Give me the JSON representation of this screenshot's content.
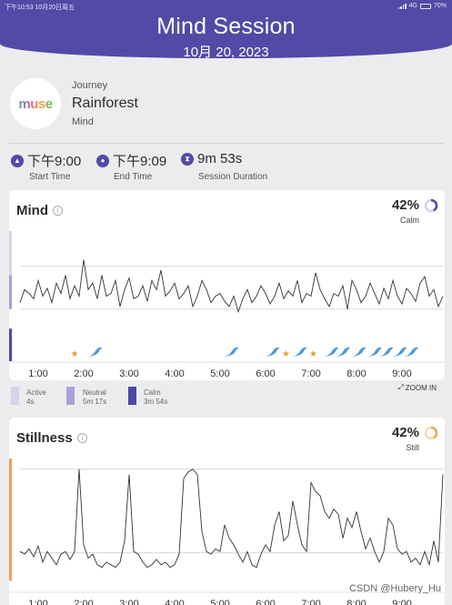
{
  "status_bar": {
    "time_date": "下午10:53  10月20日周五",
    "network": "4G",
    "battery": "70%"
  },
  "header": {
    "title": "Mind Session",
    "date": "10月 20, 2023"
  },
  "journey": {
    "logo_text": "muse",
    "label": "Journey",
    "name": "Rainforest",
    "type": "Mind"
  },
  "session": {
    "start": {
      "value": "下午9:00",
      "label": "Start Time"
    },
    "end": {
      "value": "下午9:09",
      "label": "End Time"
    },
    "duration": {
      "value": "9m 53s",
      "label": "Session Duration"
    }
  },
  "colors": {
    "brand": "#524aa6",
    "active": "#d3d5ea",
    "neutral": "#a8a3d6",
    "calm": "#4e47a6",
    "bird": "#4a9bd6",
    "star": "#e0a23a",
    "stillness": "#f0a257"
  },
  "mind_card": {
    "title": "Mind",
    "percent": "42%",
    "percent_label": "Calm",
    "legend": [
      {
        "name": "Active",
        "value": "4s"
      },
      {
        "name": "Neutral",
        "value": "5m 17s"
      },
      {
        "name": "Calm",
        "value": "3m 54s"
      }
    ],
    "zoom_label": "ZOOM IN"
  },
  "stillness_card": {
    "title": "Stillness",
    "percent": "42%",
    "percent_label": "Still"
  },
  "watermark": "CSDN @Hubery_Hu",
  "chart_data": [
    {
      "type": "line",
      "title": "Mind",
      "x_ticks": [
        "1:00",
        "2:00",
        "3:00",
        "4:00",
        "5:00",
        "6:00",
        "7:00",
        "8:00",
        "9:00"
      ],
      "xlim": [
        0.6,
        9.9
      ],
      "ylim": [
        0,
        1
      ],
      "grid": true,
      "x": [
        0.6,
        0.7,
        0.8,
        0.9,
        1.0,
        1.1,
        1.2,
        1.3,
        1.4,
        1.5,
        1.6,
        1.7,
        1.8,
        1.9,
        2.0,
        2.1,
        2.2,
        2.3,
        2.4,
        2.5,
        2.6,
        2.7,
        2.8,
        2.9,
        3.0,
        3.1,
        3.2,
        3.3,
        3.4,
        3.5,
        3.6,
        3.7,
        3.8,
        3.9,
        4.0,
        4.1,
        4.2,
        4.3,
        4.4,
        4.5,
        4.6,
        4.7,
        4.8,
        4.9,
        5.0,
        5.1,
        5.2,
        5.3,
        5.4,
        5.5,
        5.6,
        5.7,
        5.8,
        5.9,
        6.0,
        6.1,
        6.2,
        6.3,
        6.4,
        6.5,
        6.6,
        6.7,
        6.8,
        6.9,
        7.0,
        7.1,
        7.2,
        7.3,
        7.4,
        7.5,
        7.6,
        7.7,
        7.8,
        7.9,
        8.0,
        8.1,
        8.2,
        8.3,
        8.4,
        8.5,
        8.6,
        8.7,
        8.8,
        8.9,
        9.0,
        9.1,
        9.2,
        9.3,
        9.4,
        9.5,
        9.6,
        9.7,
        9.8,
        9.9
      ],
      "y": [
        0.45,
        0.55,
        0.52,
        0.48,
        0.62,
        0.5,
        0.56,
        0.45,
        0.6,
        0.52,
        0.66,
        0.48,
        0.58,
        0.5,
        0.78,
        0.55,
        0.6,
        0.48,
        0.66,
        0.5,
        0.52,
        0.62,
        0.42,
        0.55,
        0.64,
        0.48,
        0.5,
        0.58,
        0.46,
        0.62,
        0.55,
        0.7,
        0.5,
        0.54,
        0.6,
        0.48,
        0.52,
        0.58,
        0.42,
        0.5,
        0.62,
        0.55,
        0.45,
        0.5,
        0.52,
        0.46,
        0.42,
        0.5,
        0.38,
        0.48,
        0.55,
        0.45,
        0.5,
        0.58,
        0.52,
        0.44,
        0.5,
        0.6,
        0.48,
        0.54,
        0.5,
        0.62,
        0.45,
        0.52,
        0.5,
        0.68,
        0.55,
        0.48,
        0.42,
        0.52,
        0.5,
        0.58,
        0.4,
        0.62,
        0.55,
        0.45,
        0.5,
        0.6,
        0.52,
        0.44,
        0.56,
        0.48,
        0.62,
        0.5,
        0.44,
        0.56,
        0.52,
        0.46,
        0.6,
        0.65,
        0.5,
        0.55,
        0.42,
        0.5
      ],
      "events": [
        {
          "kind": "star",
          "x": 1.8
        },
        {
          "kind": "bird",
          "x": 2.25
        },
        {
          "kind": "bird",
          "x": 5.25
        },
        {
          "kind": "bird",
          "x": 6.15
        },
        {
          "kind": "star",
          "x": 6.45
        },
        {
          "kind": "bird",
          "x": 6.75
        },
        {
          "kind": "star",
          "x": 7.05
        },
        {
          "kind": "bird",
          "x": 7.45
        },
        {
          "kind": "bird",
          "x": 7.7
        },
        {
          "kind": "bird",
          "x": 8.05
        },
        {
          "kind": "bird",
          "x": 8.4
        },
        {
          "kind": "bird",
          "x": 8.65
        },
        {
          "kind": "bird",
          "x": 8.95
        },
        {
          "kind": "bird",
          "x": 9.2
        }
      ]
    },
    {
      "type": "line",
      "title": "Stillness",
      "x_ticks": [
        "1:00",
        "2:00",
        "3:00",
        "4:00",
        "5:00",
        "6:00",
        "7:00",
        "8:00",
        "9:00"
      ],
      "xlim": [
        0.6,
        9.9
      ],
      "ylim": [
        0,
        1
      ],
      "grid": true,
      "x": [
        0.6,
        0.7,
        0.8,
        0.9,
        1.0,
        1.1,
        1.2,
        1.3,
        1.4,
        1.5,
        1.6,
        1.7,
        1.8,
        1.9,
        2.0,
        2.1,
        2.2,
        2.3,
        2.4,
        2.5,
        2.6,
        2.7,
        2.8,
        2.9,
        3.0,
        3.1,
        3.2,
        3.3,
        3.4,
        3.5,
        3.6,
        3.7,
        3.8,
        3.9,
        4.0,
        4.1,
        4.2,
        4.3,
        4.4,
        4.5,
        4.6,
        4.7,
        4.8,
        4.9,
        5.0,
        5.1,
        5.2,
        5.3,
        5.4,
        5.5,
        5.6,
        5.7,
        5.8,
        5.9,
        6.0,
        6.1,
        6.2,
        6.3,
        6.4,
        6.5,
        6.6,
        6.7,
        6.8,
        6.9,
        7.0,
        7.1,
        7.2,
        7.3,
        7.4,
        7.5,
        7.6,
        7.7,
        7.8,
        7.9,
        8.0,
        8.1,
        8.2,
        8.3,
        8.4,
        8.5,
        8.6,
        8.7,
        8.8,
        8.9,
        9.0,
        9.1,
        9.2,
        9.3,
        9.4,
        9.5,
        9.6,
        9.7,
        9.8,
        9.9
      ],
      "y": [
        0.3,
        0.28,
        0.32,
        0.26,
        0.34,
        0.22,
        0.3,
        0.25,
        0.2,
        0.28,
        0.3,
        0.24,
        0.3,
        0.92,
        0.35,
        0.25,
        0.28,
        0.2,
        0.18,
        0.22,
        0.2,
        0.18,
        0.22,
        0.38,
        0.88,
        0.3,
        0.28,
        0.22,
        0.18,
        0.2,
        0.24,
        0.2,
        0.22,
        0.18,
        0.2,
        0.28,
        0.85,
        0.9,
        0.92,
        0.88,
        0.45,
        0.3,
        0.28,
        0.32,
        0.3,
        0.5,
        0.4,
        0.35,
        0.28,
        0.22,
        0.3,
        0.2,
        0.18,
        0.28,
        0.35,
        0.3,
        0.5,
        0.6,
        0.38,
        0.42,
        0.68,
        0.5,
        0.35,
        0.3,
        0.82,
        0.75,
        0.72,
        0.6,
        0.55,
        0.62,
        0.58,
        0.4,
        0.55,
        0.48,
        0.6,
        0.45,
        0.32,
        0.4,
        0.3,
        0.22,
        0.3,
        0.55,
        0.5,
        0.32,
        0.28,
        0.3,
        0.22,
        0.25,
        0.2,
        0.3,
        0.2,
        0.38,
        0.22,
        0.88
      ]
    }
  ]
}
